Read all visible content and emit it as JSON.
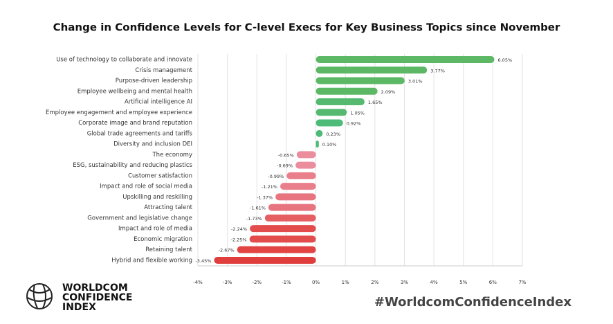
{
  "chart_data": {
    "type": "hbar",
    "title": "Change in Confidence Levels for C-level Execs for Key Business Topics since November",
    "categories": [
      "Use of technology to collaborate and innovate",
      "Crisis management",
      "Purpose-driven leadership",
      "Employee wellbeing and mental health",
      "Artificial intelligence AI",
      "Employee engagement and employee experience",
      "Corporate image and brand reputation",
      "Global trade agreements and tariffs",
      "Diversity and inclusion DEI",
      "The economy",
      "ESG, sustainability and reducing plastics",
      "Customer satisfaction",
      "Impact and role of social media",
      "Upskilling and reskilling",
      "Attracting talent",
      "Government and legislative change",
      "Impact and role of media",
      "Economic migration",
      "Retaining talent",
      "Hybrid and flexible working"
    ],
    "values": [
      6.05,
      3.77,
      3.01,
      2.09,
      1.65,
      1.05,
      0.92,
      0.23,
      0.1,
      -0.65,
      -0.69,
      -0.99,
      -1.21,
      -1.37,
      -1.61,
      -1.73,
      -2.24,
      -2.25,
      -2.67,
      -3.45
    ],
    "value_labels": [
      "6.05%",
      "3.77%",
      "3.01%",
      "2.09%",
      "1.65%",
      "1.05%",
      "0.92%",
      "0.23%",
      "0.10%",
      "-0.65%",
      "-0.69%",
      "-0.99%",
      "-1.21%",
      "-1.37%",
      "-1.61%",
      "-1.73%",
      "-2.24%",
      "-2.25%",
      "-2.67%",
      "-3.45%"
    ],
    "colors": [
      "#5db866",
      "#5db866",
      "#5db866",
      "#5db866",
      "#55ba70",
      "#55ba70",
      "#4fbb78",
      "#4fbb78",
      "#4fbb78",
      "#eb8d9d",
      "#eb8d9d",
      "#ea7f8c",
      "#ea7f8c",
      "#e87480",
      "#e87480",
      "#e45e62",
      "#e24c4c",
      "#e24c4c",
      "#e24444",
      "#e03d3d"
    ],
    "xlim": [
      -4,
      7
    ],
    "xticks": [
      {
        "value": -4,
        "label": "-4%"
      },
      {
        "value": -3,
        "label": "-3%"
      },
      {
        "value": -2,
        "label": "-2%"
      },
      {
        "value": -1,
        "label": "-1%"
      },
      {
        "value": 0,
        "label": "0%"
      },
      {
        "value": 1,
        "label": "1%"
      },
      {
        "value": 2,
        "label": "2%"
      },
      {
        "value": 3,
        "label": "3%"
      },
      {
        "value": 4,
        "label": "4%"
      },
      {
        "value": 5,
        "label": "5%"
      },
      {
        "value": 6,
        "label": "6%"
      },
      {
        "value": 7,
        "label": "7%"
      }
    ],
    "grid": true
  },
  "branding": {
    "logo": [
      "WORLDCOM",
      "CONFIDENCE",
      "INDEX"
    ],
    "hashtag": "#WorldcomConfidenceIndex"
  }
}
